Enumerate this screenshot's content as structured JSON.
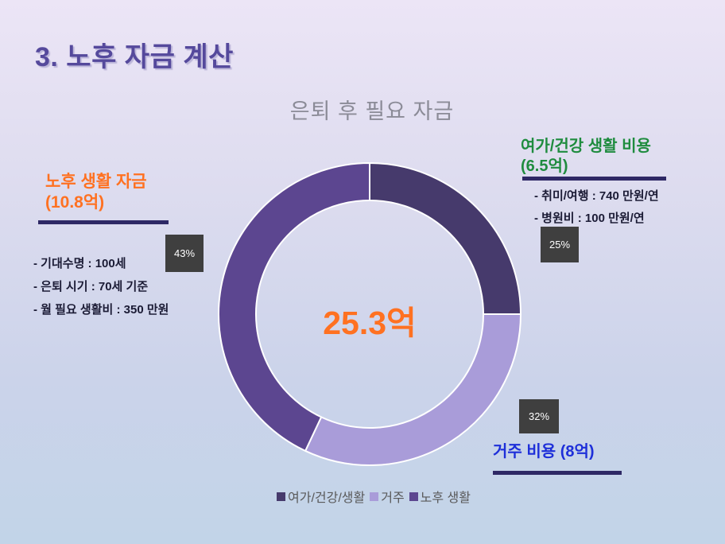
{
  "slide": {
    "title": "3. 노후 자금 계산"
  },
  "chart_data": {
    "type": "pie",
    "style": "donut",
    "title": "은퇴 후 필요 자금",
    "categories": [
      "여가/건강/생활",
      "거주",
      "노후 생활"
    ],
    "values": [
      25,
      32,
      43
    ],
    "value_unit": "%",
    "data_labels": [
      "25%",
      "32%",
      "43%"
    ],
    "category_amounts": [
      "6.5억",
      "8억",
      "10.8억"
    ],
    "center_total_label": "25.3억",
    "colors": [
      "#463A6C",
      "#A99CD9",
      "#5C4690"
    ],
    "slice_border_color": "#FFFFFF",
    "start_angle_deg": 0,
    "direction": "clockwise",
    "legend_position": "bottom"
  },
  "annotations": {
    "left": {
      "title_line1": "노후 생활 자금",
      "title_line2": "(10.8억)",
      "items": [
        "- 기대수명 : 100세",
        "- 은퇴 시기 : 70세 기준",
        "- 월 필요 생활비 : 350 만원"
      ],
      "pct_label": "43%",
      "accent_color": "#FF7121"
    },
    "top_right": {
      "title_line1": "여가/건강 생활 비용",
      "title_line2": "(6.5억)",
      "items": [
        "- 취미/여행 : 740 만원/연",
        "- 병원비 : 100 만원/연"
      ],
      "pct_label": "25%",
      "accent_color": "#1F8C3F"
    },
    "bottom_right": {
      "title": "거주 비용 (8억)",
      "pct_label": "32%",
      "accent_color": "#1E2FD9"
    }
  },
  "theme": {
    "background_top": "#ECE5F6",
    "background_bottom": "#C2D4E8",
    "slide_title_color": "#55499C",
    "chart_title_color": "#8B8B97",
    "underline_color": "#2E2865",
    "bullet_text_color": "#1B1B35",
    "label_box_bg": "#3F3F3F",
    "label_box_text": "#FFFFFF",
    "legend_text_color": "#595959",
    "center_total_color": "#FF7121"
  }
}
